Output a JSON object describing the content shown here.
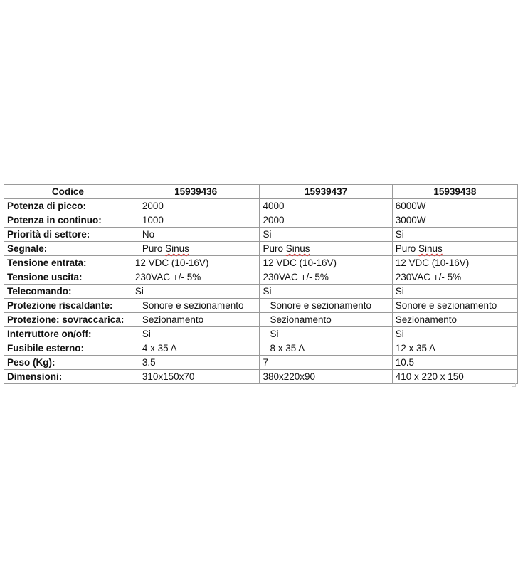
{
  "table": {
    "header": [
      "Codice",
      "15939436",
      "15939437",
      "15939438"
    ],
    "rows": [
      [
        "Potenza di picco:",
        "2000",
        "4000",
        "6000W"
      ],
      [
        "Potenza in continuo:",
        "1000",
        "2000",
        "3000W"
      ],
      [
        "Priorità di settore:",
        "No",
        "Si",
        "Si"
      ],
      [
        "Segnale:",
        "Puro Sinus",
        "Puro Sinus",
        "Puro Sinus"
      ],
      [
        "Tensione entrata:",
        "12 VDC (10-16V)",
        "12 VDC (10-16V)",
        "12 VDC (10-16V)"
      ],
      [
        "Tensione uscita:",
        "230VAC +/- 5%",
        "230VAC +/- 5%",
        "230VAC +/- 5%"
      ],
      [
        "Telecomando:",
        "Si",
        "Si",
        "Si"
      ],
      [
        "Protezione riscaldante:",
        "Sonore e sezionamento",
        "Sonore e sezionamento",
        "Sonore e sezionamento"
      ],
      [
        "Protezione: sovraccarica:",
        "Sezionamento",
        "Sezionamento",
        "Sezionamento"
      ],
      [
        "Interruttore on/off:",
        "Si",
        "Si",
        "Si"
      ],
      [
        "Fusibile esterno:",
        "4 x 35 A",
        "8 x 35 A",
        "12 x 35 A"
      ],
      [
        "Peso (Kg):",
        "3.5",
        "7",
        "10.5"
      ],
      [
        "Dimensioni:",
        "310x150x70",
        "380x220x90",
        "410 x 220 x 150"
      ]
    ]
  }
}
